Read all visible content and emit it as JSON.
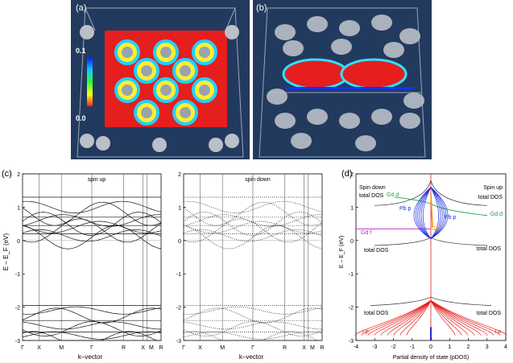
{
  "panel_a": {
    "label": "(a)",
    "scale_max": "0.1",
    "scale_min": "0.0"
  },
  "panel_b": {
    "label": "(b)"
  },
  "panel_c": {
    "label": "(c)",
    "ylabel": "E – E_F (eV)",
    "xlabel": "k–vector",
    "yticks": [
      "2",
      "1",
      "0",
      "-1",
      "-2",
      "-3"
    ],
    "kpoints_up": [
      "Γ",
      "X",
      "M",
      "Γ",
      "R",
      "X",
      "M",
      "R"
    ],
    "kpoints_down": [
      "Γ",
      "X",
      "M",
      "Γ",
      "R",
      "X",
      "M",
      "R"
    ],
    "up_title": "spin up",
    "down_title": "spin down"
  },
  "panel_d": {
    "label": "(d)",
    "xlabel": "Partial density of state (pDOS)",
    "ylabel": "E – E_F (eV)",
    "xticks": [
      "-4",
      "-3",
      "-2",
      "-1",
      "0",
      "1",
      "2",
      "3",
      "4"
    ],
    "yticks": [
      "2",
      "1",
      "0",
      "-1",
      "-2",
      "-3"
    ],
    "spin_down": "Spin down",
    "spin_up": "Spin up",
    "total_dos": "total DOS",
    "gd_d": "Gd d",
    "gd_f": "Gd f",
    "pb_p": "Pb p",
    "gd": "Gd",
    "i_p": "I p",
    "colors": {
      "gd_d": "#1aa34a",
      "pb_p": "#1f2fe0",
      "gd_f": "#c020c0",
      "i_p": "#e81a1a",
      "gd": "#ff8a00",
      "total": "#333333"
    }
  },
  "chart_data": [
    {
      "type": "line",
      "title": "spin up",
      "xlabel": "k–vector",
      "ylabel": "E – E_F (eV)",
      "ylim": [
        -3,
        2
      ],
      "x_ticks": [
        "Γ",
        "X",
        "M",
        "Γ",
        "R",
        "X",
        "M",
        "R"
      ]
    },
    {
      "type": "line",
      "title": "spin down",
      "xlabel": "k–vector",
      "ylabel": "E – E_F (eV)",
      "ylim": [
        -3,
        2
      ],
      "x_ticks": [
        "Γ",
        "X",
        "M",
        "Γ",
        "R",
        "X",
        "M",
        "R"
      ]
    },
    {
      "type": "line",
      "title": "",
      "xlabel": "Partial density of state (pDOS)",
      "ylabel": "E – E_F (eV)",
      "xlim": [
        -4,
        4
      ],
      "ylim": [
        -3,
        2
      ]
    }
  ]
}
